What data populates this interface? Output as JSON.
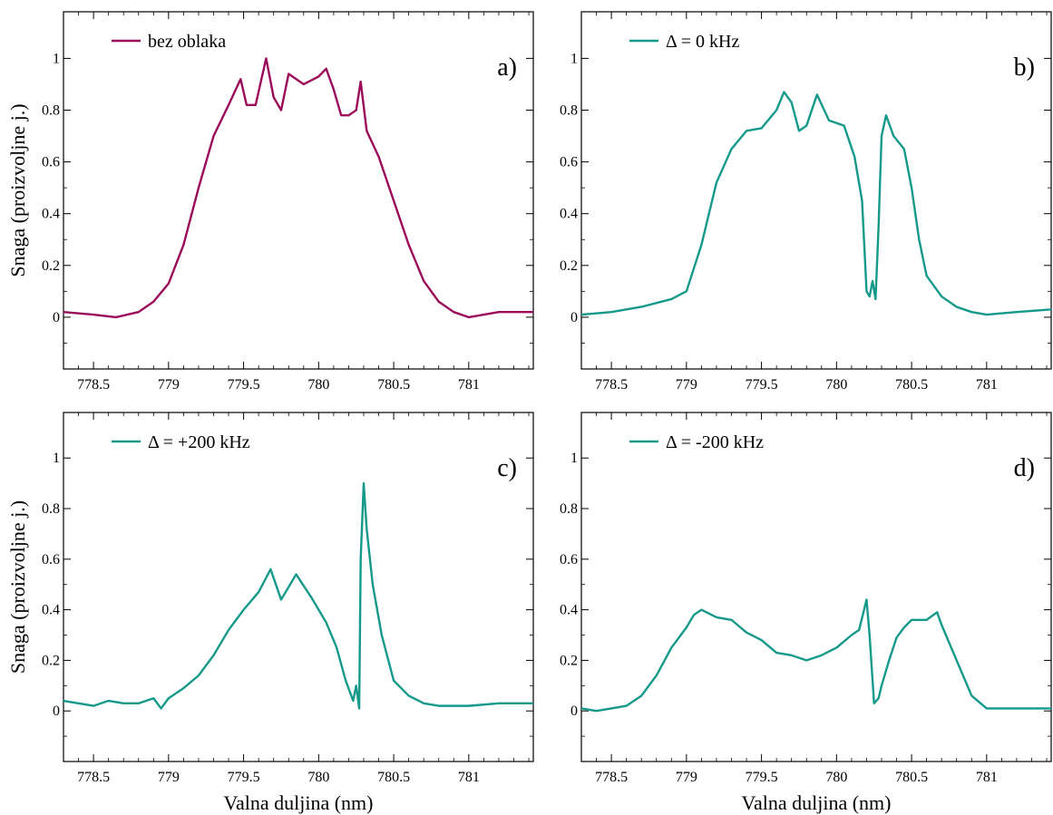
{
  "colors": {
    "magenta": "#9b0a5a",
    "teal": "#14998a",
    "axis": "#000000"
  },
  "labels": {
    "xlabel": "Valna duljina (nm)",
    "ylabel": "Snaga (proizvoljne j.)"
  },
  "chart_data": [
    {
      "type": "line",
      "panel_label": "a)",
      "legend": "bez oblaka",
      "color": "#9b0a5a",
      "xlim": [
        778.3,
        781.43
      ],
      "ylim": [
        -0.2,
        1.18
      ],
      "xticks": [
        778.5,
        779,
        779.5,
        780,
        780.5,
        781
      ],
      "xtick_labels": [
        "778.5",
        "779",
        "779.5",
        "780",
        "780.5",
        "781"
      ],
      "yticks": [
        0,
        0.2,
        0.4,
        0.6,
        0.8,
        1
      ],
      "ytick_labels": [
        "0",
        "0.2",
        "0.4",
        "0.6",
        "0.8",
        "1"
      ],
      "xlabel": "",
      "ylabel": "Snaga (proizvoljne j.)",
      "x": [
        778.3,
        778.5,
        778.65,
        778.8,
        778.9,
        779.0,
        779.1,
        779.2,
        779.3,
        779.4,
        779.48,
        779.52,
        779.58,
        779.65,
        779.7,
        779.75,
        779.8,
        779.9,
        780.0,
        780.05,
        780.1,
        780.15,
        780.2,
        780.25,
        780.28,
        780.32,
        780.4,
        780.5,
        780.6,
        780.7,
        780.8,
        780.9,
        781.0,
        781.2,
        781.43
      ],
      "y": [
        0.02,
        0.01,
        0.0,
        0.02,
        0.06,
        0.13,
        0.28,
        0.5,
        0.7,
        0.82,
        0.92,
        0.82,
        0.82,
        1.0,
        0.85,
        0.8,
        0.94,
        0.9,
        0.93,
        0.96,
        0.88,
        0.78,
        0.78,
        0.8,
        0.91,
        0.72,
        0.62,
        0.45,
        0.28,
        0.14,
        0.06,
        0.02,
        0.0,
        0.02,
        0.02
      ]
    },
    {
      "type": "line",
      "panel_label": "b)",
      "legend": "Δ = 0 kHz",
      "color": "#14998a",
      "xlim": [
        778.3,
        781.43
      ],
      "ylim": [
        -0.2,
        1.18
      ],
      "xticks": [
        778.5,
        779,
        779.5,
        780,
        780.5,
        781
      ],
      "xtick_labels": [
        "778.5",
        "779",
        "779.5",
        "780",
        "780.5",
        "781"
      ],
      "yticks": [
        0,
        0.2,
        0.4,
        0.6,
        0.8,
        1
      ],
      "ytick_labels": [
        "0",
        "0.2",
        "0.4",
        "0.6",
        "0.8",
        "1"
      ],
      "xlabel": "",
      "ylabel": "",
      "x": [
        778.3,
        778.5,
        778.7,
        778.9,
        779.0,
        779.1,
        779.2,
        779.3,
        779.4,
        779.5,
        779.6,
        779.65,
        779.7,
        779.75,
        779.8,
        779.87,
        779.95,
        780.05,
        780.12,
        780.17,
        780.2,
        780.22,
        780.24,
        780.26,
        780.28,
        780.3,
        780.33,
        780.38,
        780.45,
        780.5,
        780.55,
        780.6,
        780.7,
        780.8,
        780.9,
        781.0,
        781.2,
        781.43
      ],
      "y": [
        0.01,
        0.02,
        0.04,
        0.07,
        0.1,
        0.28,
        0.52,
        0.65,
        0.72,
        0.73,
        0.8,
        0.87,
        0.83,
        0.72,
        0.74,
        0.86,
        0.76,
        0.74,
        0.62,
        0.45,
        0.1,
        0.08,
        0.14,
        0.07,
        0.35,
        0.7,
        0.78,
        0.7,
        0.65,
        0.5,
        0.3,
        0.16,
        0.08,
        0.04,
        0.02,
        0.01,
        0.02,
        0.03
      ]
    },
    {
      "type": "line",
      "panel_label": "c)",
      "legend": "Δ = +200 kHz",
      "color": "#14998a",
      "xlim": [
        778.3,
        781.43
      ],
      "ylim": [
        -0.2,
        1.18
      ],
      "xticks": [
        778.5,
        779,
        779.5,
        780,
        780.5,
        781
      ],
      "xtick_labels": [
        "778.5",
        "779",
        "779.5",
        "780",
        "780.5",
        "781"
      ],
      "yticks": [
        0,
        0.2,
        0.4,
        0.6,
        0.8,
        1
      ],
      "ytick_labels": [
        "0",
        "0.2",
        "0.4",
        "0.6",
        "0.8",
        "1"
      ],
      "xlabel": "Valna duljina (nm)",
      "ylabel": "Snaga (proizvoljne j.)",
      "x": [
        778.3,
        778.4,
        778.5,
        778.6,
        778.7,
        778.8,
        778.9,
        778.95,
        779.0,
        779.1,
        779.2,
        779.3,
        779.4,
        779.5,
        779.6,
        779.68,
        779.75,
        779.85,
        779.95,
        780.05,
        780.12,
        780.18,
        780.23,
        780.25,
        780.27,
        780.28,
        780.3,
        780.32,
        780.36,
        780.42,
        780.5,
        780.6,
        780.7,
        780.8,
        781.0,
        781.2,
        781.43
      ],
      "y": [
        0.04,
        0.03,
        0.02,
        0.04,
        0.03,
        0.03,
        0.05,
        0.01,
        0.05,
        0.09,
        0.14,
        0.22,
        0.32,
        0.4,
        0.47,
        0.56,
        0.44,
        0.54,
        0.45,
        0.35,
        0.25,
        0.12,
        0.04,
        0.1,
        0.01,
        0.6,
        0.9,
        0.72,
        0.5,
        0.3,
        0.12,
        0.06,
        0.03,
        0.02,
        0.02,
        0.03,
        0.03
      ]
    },
    {
      "type": "line",
      "panel_label": "d)",
      "legend": "Δ = -200 kHz",
      "color": "#14998a",
      "xlim": [
        778.3,
        781.43
      ],
      "ylim": [
        -0.2,
        1.18
      ],
      "xticks": [
        778.5,
        779,
        779.5,
        780,
        780.5,
        781
      ],
      "xtick_labels": [
        "778.5",
        "779",
        "779.5",
        "780",
        "780.5",
        "781"
      ],
      "yticks": [
        0,
        0.2,
        0.4,
        0.6,
        0.8,
        1
      ],
      "ytick_labels": [
        "0",
        "0.2",
        "0.4",
        "0.6",
        "0.8",
        "1"
      ],
      "xlabel": "Valna duljina (nm)",
      "ylabel": "",
      "x": [
        778.3,
        778.4,
        778.5,
        778.6,
        778.7,
        778.8,
        778.9,
        779.0,
        779.05,
        779.1,
        779.2,
        779.3,
        779.4,
        779.5,
        779.6,
        779.7,
        779.8,
        779.9,
        780.0,
        780.1,
        780.15,
        780.2,
        780.22,
        780.25,
        780.28,
        780.3,
        780.35,
        780.4,
        780.45,
        780.5,
        780.6,
        780.67,
        780.7,
        780.8,
        780.9,
        781.0,
        781.2,
        781.43
      ],
      "y": [
        0.01,
        0.0,
        0.01,
        0.02,
        0.06,
        0.14,
        0.25,
        0.33,
        0.38,
        0.4,
        0.37,
        0.36,
        0.31,
        0.28,
        0.23,
        0.22,
        0.2,
        0.22,
        0.25,
        0.3,
        0.32,
        0.44,
        0.3,
        0.03,
        0.05,
        0.1,
        0.2,
        0.29,
        0.33,
        0.36,
        0.36,
        0.39,
        0.34,
        0.2,
        0.06,
        0.01,
        0.01,
        0.01
      ]
    }
  ]
}
